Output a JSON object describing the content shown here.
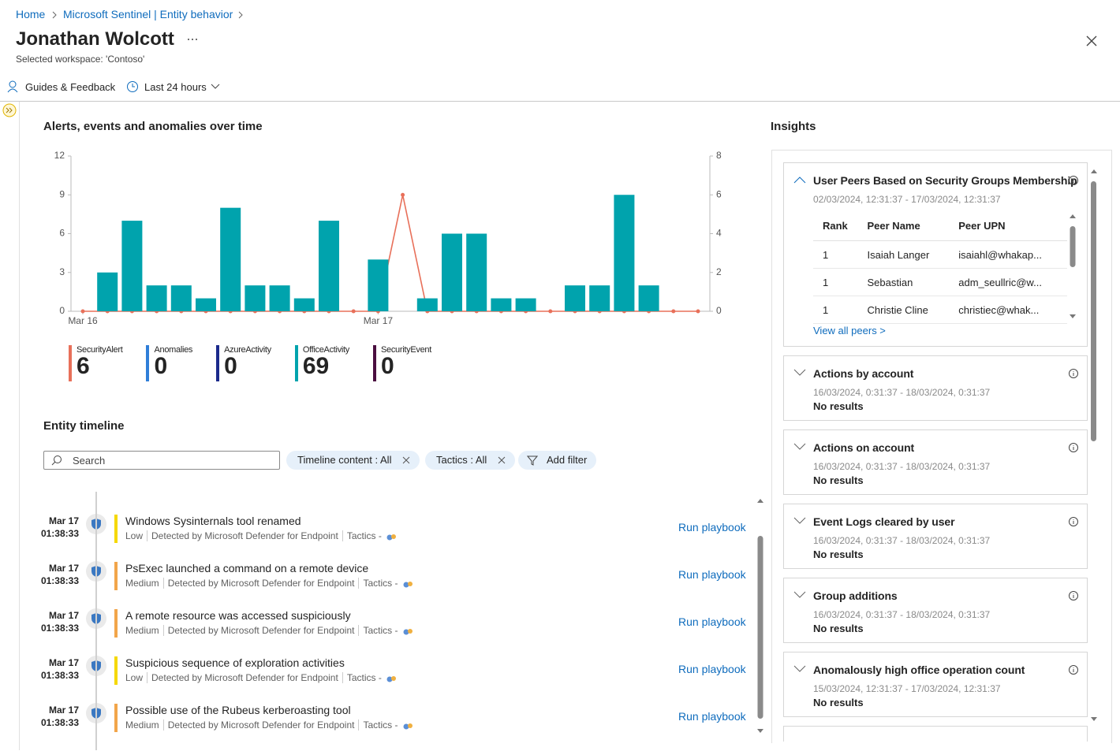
{
  "breadcrumb": [
    "Home",
    "Microsoft Sentinel | Entity behavior"
  ],
  "header": {
    "title": "Jonathan Wolcott",
    "subtitle": "Selected workspace: 'Contoso'"
  },
  "toolbar": {
    "guides": "Guides & Feedback",
    "time_range": "Last 24 hours"
  },
  "chart_data": {
    "type": "bar",
    "title": "Alerts, events and anomalies over time",
    "categories": [
      "Mar 16",
      null,
      null,
      null,
      null,
      null,
      null,
      null,
      null,
      null,
      null,
      null,
      "Mar 17",
      null,
      null,
      null,
      null,
      null,
      null,
      null,
      null,
      null,
      null,
      null,
      null,
      null
    ],
    "ylim": [
      0,
      12
    ],
    "yticks": [
      0,
      3,
      6,
      9,
      12
    ],
    "y2lim": [
      0,
      8
    ],
    "y2ticks": [
      0,
      2,
      4,
      6,
      8
    ],
    "grid": false,
    "series": [
      {
        "name": "SecurityAlert",
        "color": "#e8705a",
        "type": "line",
        "axis": "y2",
        "total": 6,
        "values": [
          0,
          0,
          0,
          0,
          0,
          0,
          0,
          0,
          0,
          0,
          0,
          0,
          0,
          6,
          0,
          0,
          0,
          0,
          0,
          0,
          0,
          0,
          0,
          0,
          0,
          0
        ]
      },
      {
        "name": "Anomalies",
        "color": "#2f7ed8",
        "total": 0
      },
      {
        "name": "AzureActivity",
        "color": "#1b2a8c",
        "total": 0
      },
      {
        "name": "OfficeActivity",
        "color": "#00a3ad",
        "type": "bar",
        "total": 69,
        "values": [
          0,
          3,
          7,
          2,
          2,
          1,
          8,
          2,
          2,
          1,
          7,
          0,
          4,
          0,
          1,
          6,
          6,
          1,
          1,
          0,
          2,
          2,
          9,
          2,
          0,
          0
        ]
      },
      {
        "name": "SecurityEvent",
        "color": "#4b0f40",
        "total": 0
      }
    ]
  },
  "timeline": {
    "title": "Entity timeline",
    "search_placeholder": "Search",
    "filters": [
      "Timeline content : All",
      "Tactics : All"
    ],
    "add_filter": "Add filter",
    "items": [
      {
        "date": "Mar 17",
        "time": "01:38:33",
        "title": "Windows Sysinternals tool renamed",
        "severity": "Low",
        "color": "#f5d800",
        "source": "Detected by Microsoft Defender for Endpoint",
        "tactics": "Tactics -",
        "action": "Run playbook"
      },
      {
        "date": "Mar 17",
        "time": "01:38:33",
        "title": "PsExec launched a command on a remote device",
        "severity": "Medium",
        "color": "#f2a54a",
        "source": "Detected by Microsoft Defender for Endpoint",
        "tactics": "Tactics -",
        "action": "Run playbook"
      },
      {
        "date": "Mar 17",
        "time": "01:38:33",
        "title": "A remote resource was accessed suspiciously",
        "severity": "Medium",
        "color": "#f2a54a",
        "source": "Detected by Microsoft Defender for Endpoint",
        "tactics": "Tactics -",
        "action": "Run playbook"
      },
      {
        "date": "Mar 17",
        "time": "01:38:33",
        "title": "Suspicious sequence of exploration activities",
        "severity": "Low",
        "color": "#f5d800",
        "source": "Detected by Microsoft Defender for Endpoint",
        "tactics": "Tactics -",
        "action": "Run playbook"
      },
      {
        "date": "Mar 17",
        "time": "01:38:33",
        "title": "Possible use of the Rubeus kerberoasting tool",
        "severity": "Medium",
        "color": "#f2a54a",
        "source": "Detected by Microsoft Defender for Endpoint",
        "tactics": "Tactics -",
        "action": "Run playbook"
      }
    ]
  },
  "insights": {
    "title": "Insights",
    "cards": [
      {
        "title": "User Peers Based on Security Groups Membership",
        "range": "02/03/2024, 12:31:37 - 17/03/2024, 12:31:37",
        "table": {
          "columns": [
            "Rank",
            "Peer Name",
            "Peer UPN"
          ],
          "rows": [
            [
              1,
              "Isaiah Langer",
              "isaiahl@whakap..."
            ],
            [
              1,
              "Sebastian",
              "adm_seullric@w..."
            ],
            [
              1,
              "Christie Cline",
              "christiec@whak..."
            ]
          ]
        },
        "link": "View all peers >"
      },
      {
        "title": "Actions by account",
        "range": "16/03/2024, 0:31:37 - 18/03/2024, 0:31:37",
        "result": "No results"
      },
      {
        "title": "Actions on account",
        "range": "16/03/2024, 0:31:37 - 18/03/2024, 0:31:37",
        "result": "No results"
      },
      {
        "title": "Event Logs cleared by user",
        "range": "16/03/2024, 0:31:37 - 18/03/2024, 0:31:37",
        "result": "No results"
      },
      {
        "title": "Group additions",
        "range": "16/03/2024, 0:31:37 - 18/03/2024, 0:31:37",
        "result": "No results"
      },
      {
        "title": "Anomalously high office operation count",
        "range": "15/03/2024, 12:31:37 - 17/03/2024, 12:31:37",
        "result": "No results"
      }
    ]
  }
}
